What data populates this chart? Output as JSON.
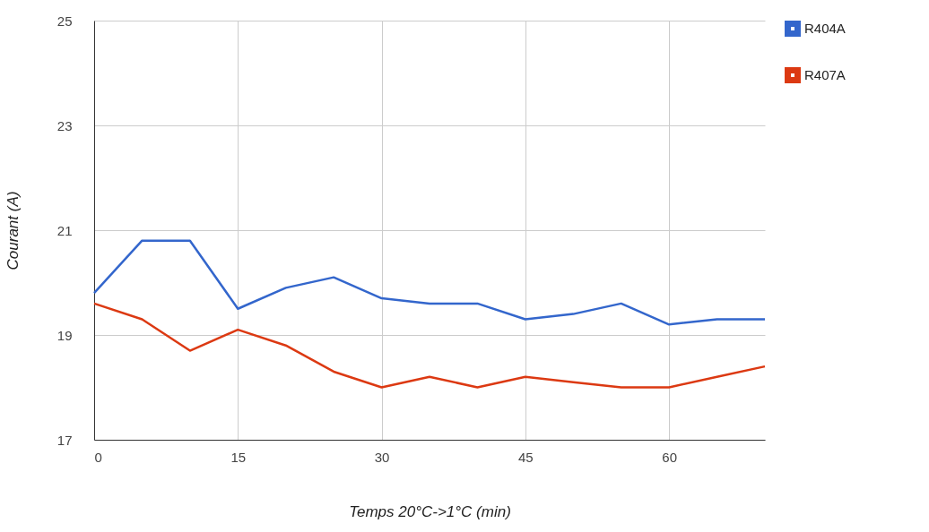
{
  "chart_data": {
    "type": "line",
    "xlabel": "Temps 20°C->1°C (min)",
    "ylabel": "Courant (A)",
    "x": [
      0,
      5,
      10,
      15,
      20,
      25,
      30,
      35,
      40,
      45,
      50,
      55,
      60,
      65,
      70
    ],
    "series": [
      {
        "name": "R404A",
        "color": "#3366cc",
        "values": [
          19.8,
          20.8,
          20.8,
          19.5,
          19.9,
          20.1,
          19.7,
          19.6,
          19.6,
          19.3,
          19.4,
          19.6,
          19.2,
          19.3,
          19.3
        ]
      },
      {
        "name": "R407A",
        "color": "#dc3912",
        "values": [
          19.6,
          19.3,
          18.7,
          19.1,
          18.8,
          18.3,
          18.0,
          18.2,
          18.0,
          18.2,
          18.1,
          18.0,
          18.0,
          18.2,
          18.4
        ]
      }
    ],
    "xlim": [
      0,
      70
    ],
    "xticks": [
      0,
      15,
      30,
      45,
      60
    ],
    "ylim": [
      17,
      25
    ],
    "yticks": [
      17,
      19,
      21,
      23,
      25
    ],
    "grid": true,
    "legend": "top right",
    "marker": "none",
    "line_style": "solid"
  }
}
